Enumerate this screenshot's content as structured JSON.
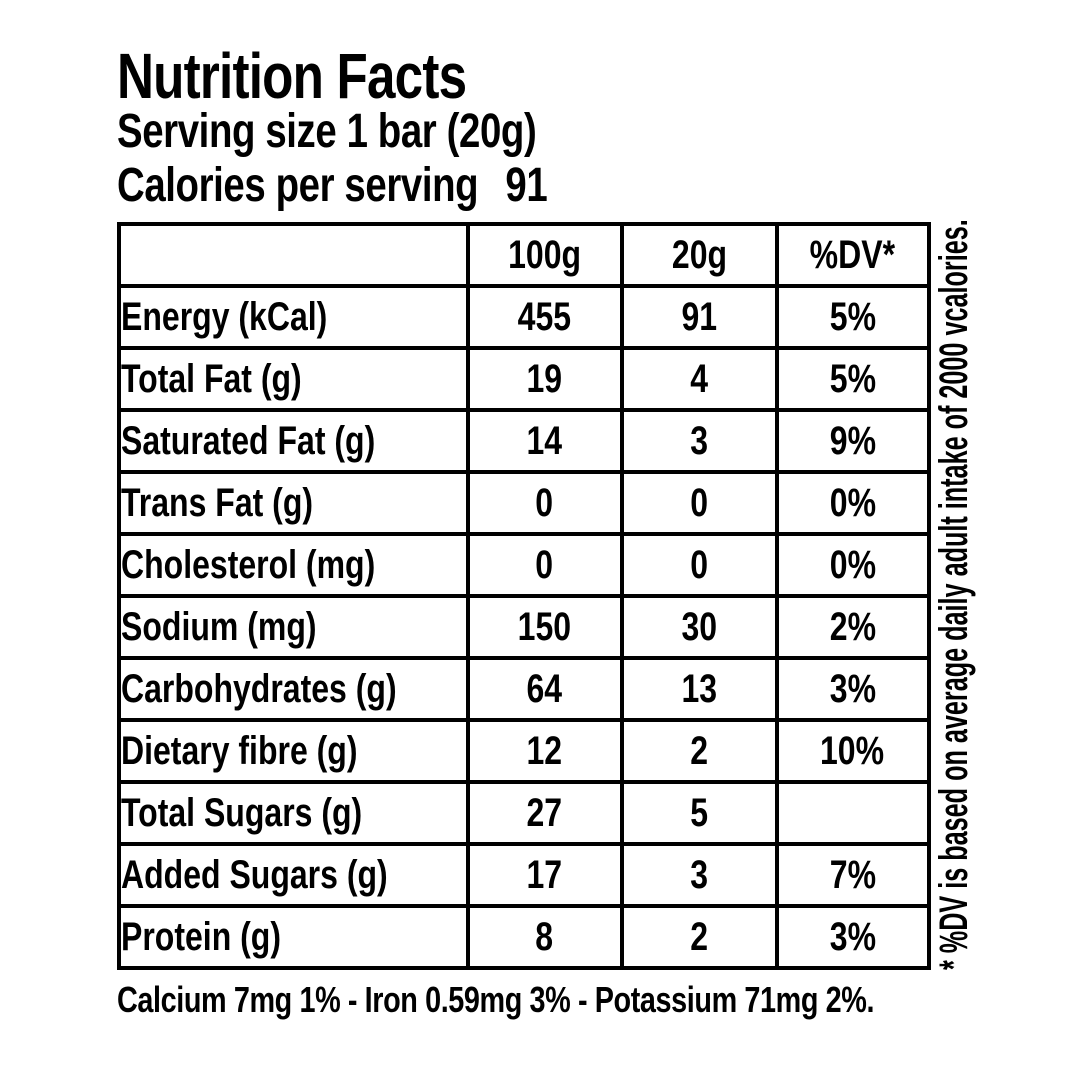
{
  "header": {
    "title": "Nutrition Facts",
    "serving_size": "Serving size 1 bar (20g)",
    "calories_label": "Calories per serving",
    "calories_value": "91"
  },
  "table": {
    "columns": [
      "",
      "100g",
      "20g",
      "%DV*"
    ],
    "rows": [
      {
        "label": "Energy (kCal)",
        "per100g": "455",
        "per20g": "91",
        "dv": "5%"
      },
      {
        "label": "Total Fat (g)",
        "per100g": "19",
        "per20g": "4",
        "dv": "5%"
      },
      {
        "label": "Saturated Fat (g)",
        "per100g": "14",
        "per20g": "3",
        "dv": "9%"
      },
      {
        "label": "Trans Fat (g)",
        "per100g": "0",
        "per20g": "0",
        "dv": "0%"
      },
      {
        "label": "Cholesterol (mg)",
        "per100g": "0",
        "per20g": "0",
        "dv": "0%"
      },
      {
        "label": "Sodium (mg)",
        "per100g": "150",
        "per20g": "30",
        "dv": "2%"
      },
      {
        "label": "Carbohydrates (g)",
        "per100g": "64",
        "per20g": "13",
        "dv": "3%"
      },
      {
        "label": "Dietary fibre (g)",
        "per100g": "12",
        "per20g": "2",
        "dv": "10%"
      },
      {
        "label": "Total Sugars (g)",
        "per100g": "27",
        "per20g": "5",
        "dv": ""
      },
      {
        "label": "Added Sugars (g)",
        "per100g": "17",
        "per20g": "3",
        "dv": "7%"
      },
      {
        "label": "Protein (g)",
        "per100g": "8",
        "per20g": "2",
        "dv": "3%"
      }
    ]
  },
  "footer": {
    "minerals": "Calcium 7mg 1% - Iron 0.59mg 3% - Potassium 71mg 2%."
  },
  "side_note": "* %DV is based on average daily adult intake of 2000 vcalories.",
  "colors": {
    "background": "#ffffff",
    "text": "#000000",
    "border": "#000000"
  }
}
